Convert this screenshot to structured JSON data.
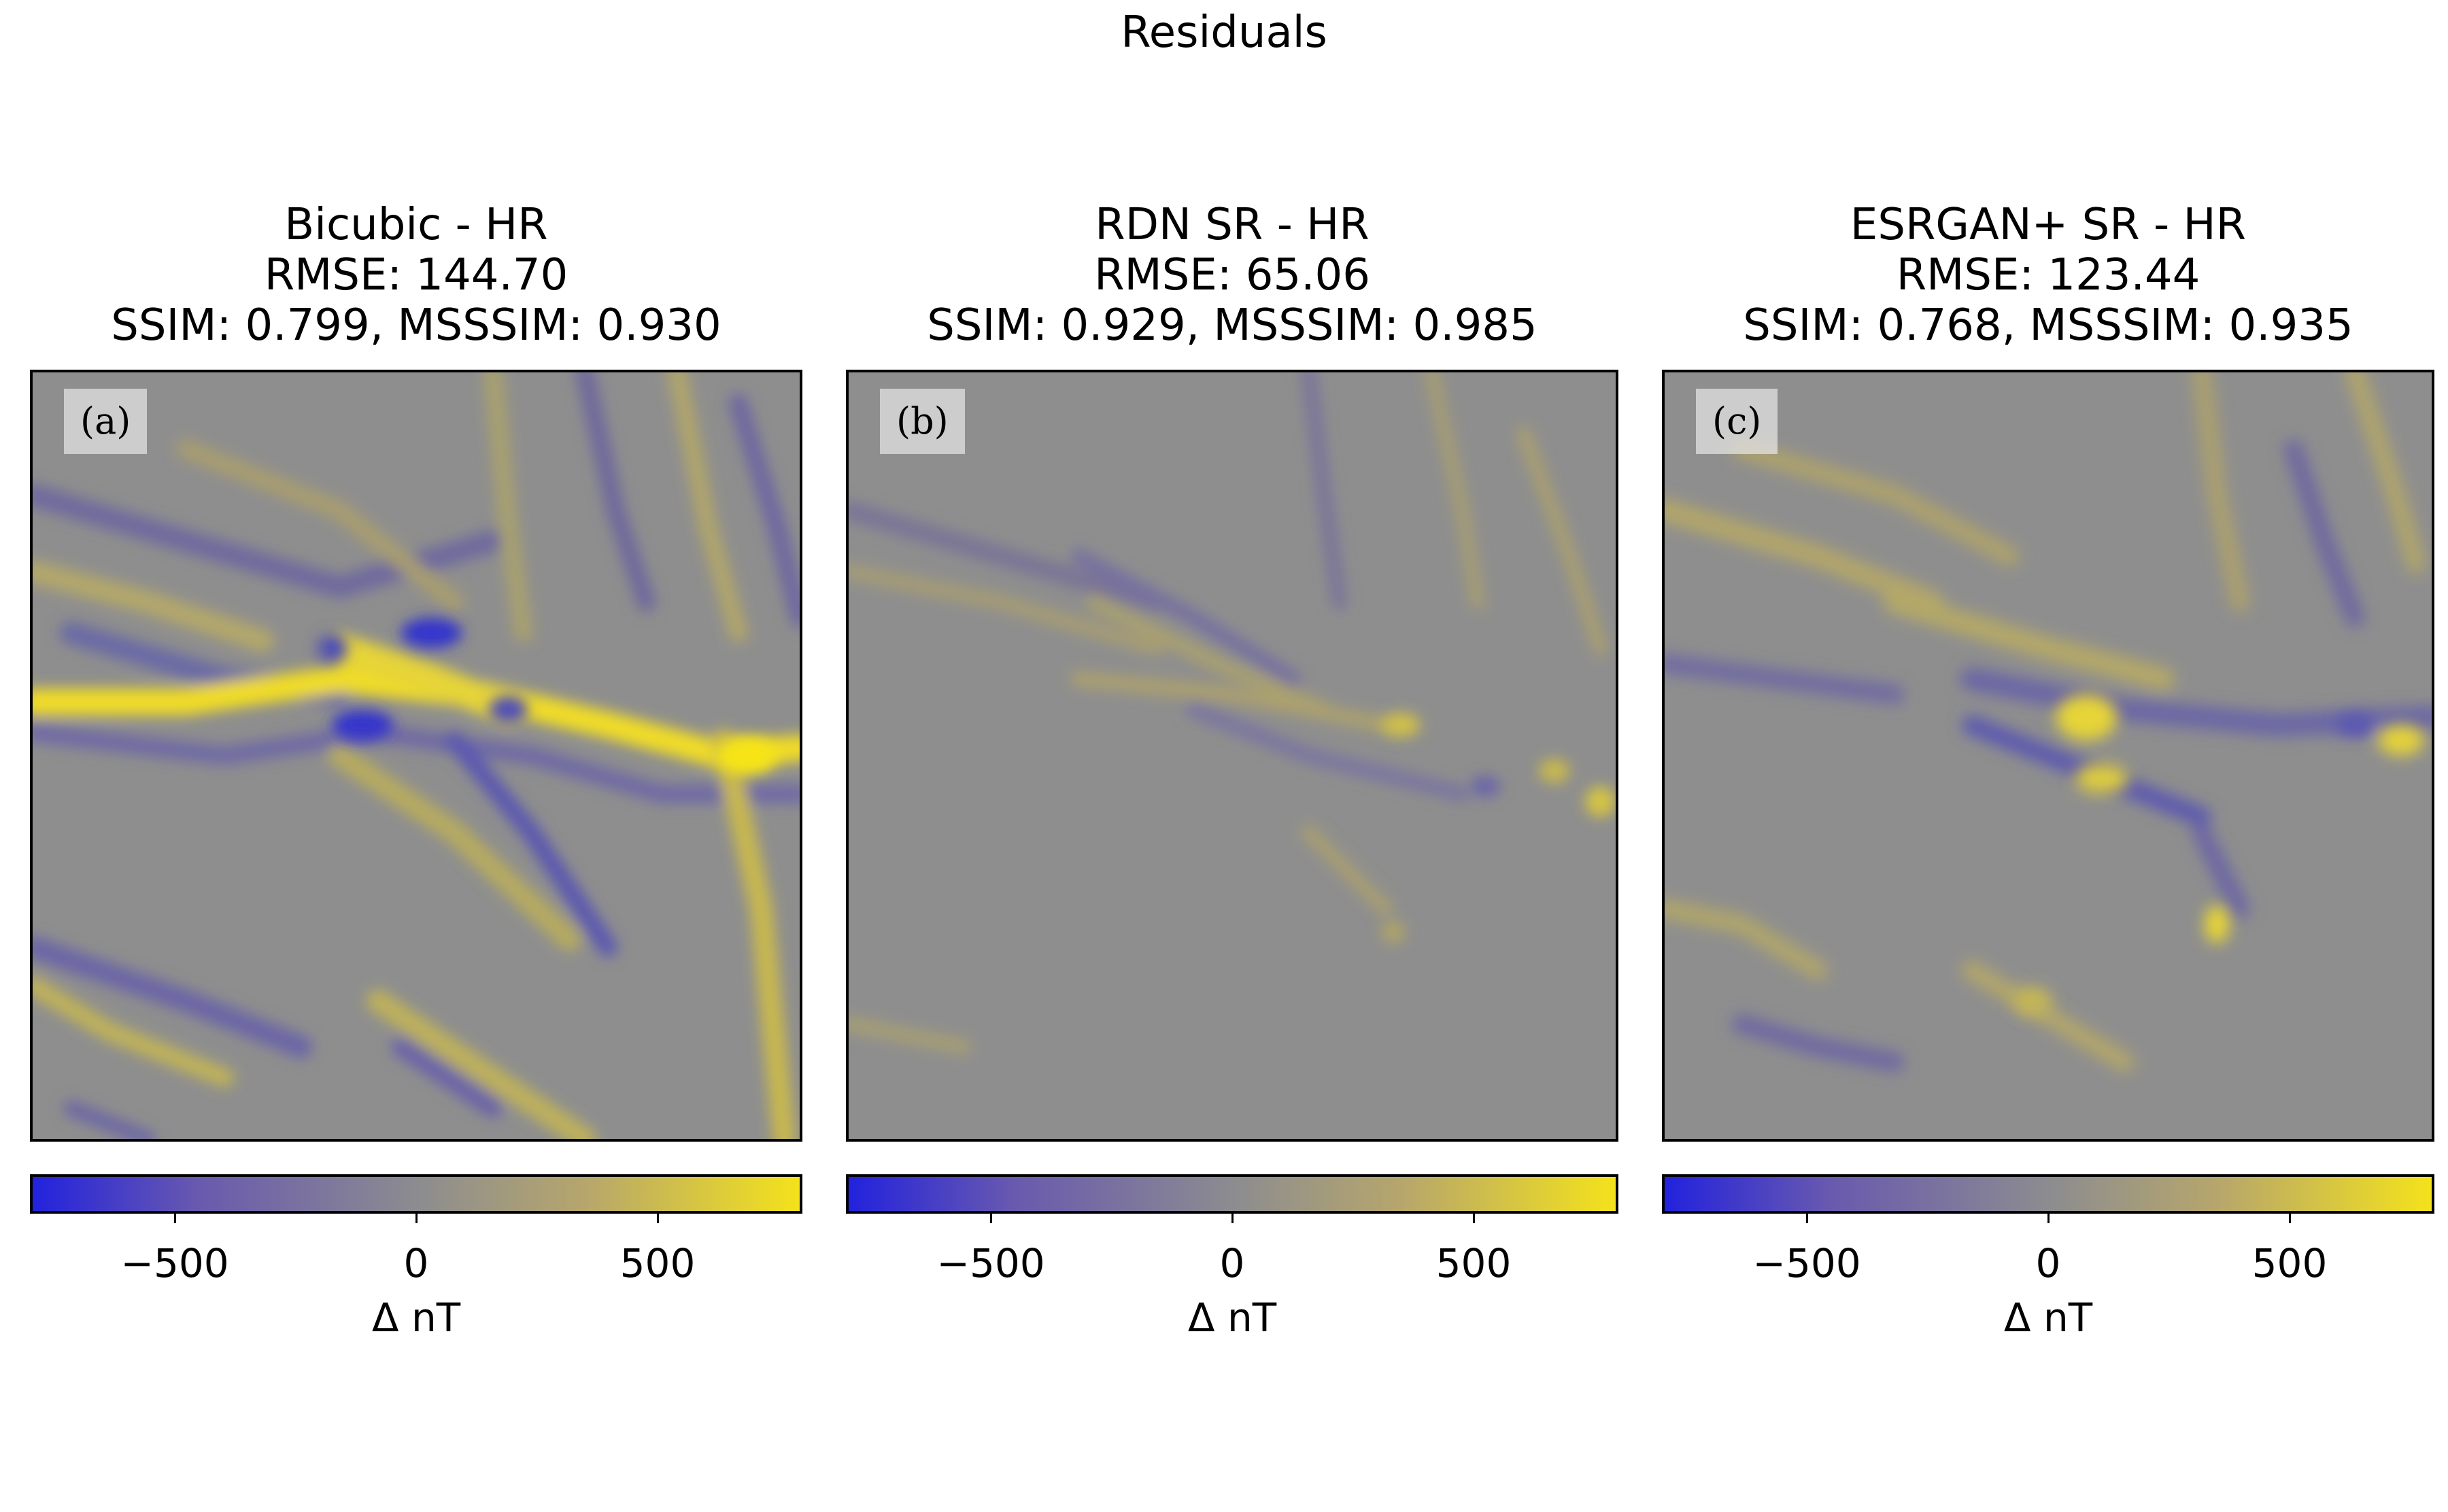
{
  "suptitle": "Residuals",
  "panels": [
    {
      "label": "(a)",
      "title_lines": [
        "Bicubic - HR",
        "RMSE: 144.70",
        "SSIM: 0.799, MSSSIM: 0.930"
      ]
    },
    {
      "label": "(b)",
      "title_lines": [
        "RDN SR - HR",
        "RMSE: 65.06",
        "SSIM: 0.929, MSSSIM: 0.985"
      ]
    },
    {
      "label": "(c)",
      "title_lines": [
        "ESRGAN+ SR - HR",
        "RMSE: 123.44",
        "SSIM: 0.768, MSSSIM: 0.935"
      ]
    }
  ],
  "colorbar": {
    "ticks": [
      -500,
      0,
      500
    ],
    "tick_labels": [
      "−500",
      "0",
      "500"
    ],
    "range": [
      -800,
      800
    ],
    "label": "Δ nT",
    "colors": {
      "low": "#2222dd",
      "mid": "#8c8c90",
      "high": "#f4e21c"
    }
  },
  "chart_data": [
    {
      "type": "heatmap",
      "title": "Bicubic - HR",
      "rmse": 144.7,
      "ssim": 0.799,
      "msssim": 0.93,
      "vmin": -800,
      "vmax": 800,
      "colorbar_label": "Δ nT"
    },
    {
      "type": "heatmap",
      "title": "RDN SR - HR",
      "rmse": 65.06,
      "ssim": 0.929,
      "msssim": 0.985,
      "vmin": -800,
      "vmax": 800,
      "colorbar_label": "Δ nT"
    },
    {
      "type": "heatmap",
      "title": "ESRGAN+ SR - HR",
      "rmse": 123.44,
      "ssim": 0.768,
      "msssim": 0.935,
      "vmin": -800,
      "vmax": 800,
      "colorbar_label": "Δ nT"
    }
  ]
}
